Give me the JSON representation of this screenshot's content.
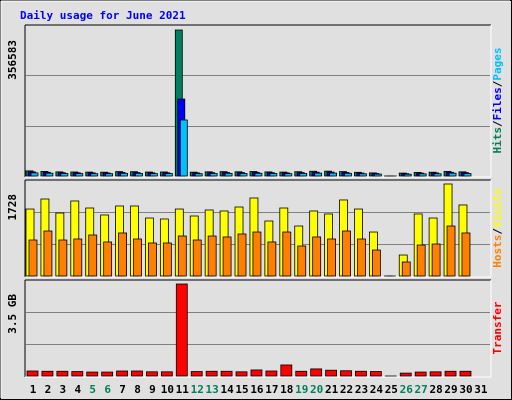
{
  "chart_data": [
    {
      "type": "bar",
      "title": "Daily usage for June 2021",
      "title_color": "#0000ff",
      "legend_separator": "/",
      "series": [
        {
          "name": "Hits",
          "color": "#00805c",
          "values": [
            12500,
            11200,
            10100,
            9800,
            9500,
            9300,
            10800,
            10600,
            9700,
            9900,
            356583,
            9400,
            10200,
            10700,
            10300,
            11000,
            10100,
            9600,
            10500,
            11600,
            11800,
            10900,
            9000,
            7600,
            0,
            7100,
            8800,
            9300,
            11300,
            10200,
            null
          ]
        },
        {
          "name": "Files",
          "color": "#0000ff",
          "values": [
            10100,
            9000,
            8100,
            7900,
            7600,
            7400,
            8700,
            8500,
            7800,
            7900,
            188000,
            7500,
            8200,
            8600,
            8300,
            8800,
            8100,
            7700,
            8400,
            9300,
            9500,
            8700,
            7200,
            6100,
            0,
            5700,
            7000,
            7400,
            9000,
            8200,
            null
          ]
        },
        {
          "name": "Pages",
          "color": "#00c0ff",
          "values": [
            7600,
            6800,
            6100,
            5900,
            5700,
            5600,
            6500,
            6400,
            5800,
            6000,
            136800,
            5600,
            6100,
            6400,
            6200,
            6600,
            6100,
            5800,
            6300,
            7000,
            7100,
            6500,
            5400,
            4600,
            0,
            4300,
            5300,
            5600,
            6800,
            6100,
            null
          ]
        }
      ],
      "ylim": [
        0,
        356583
      ],
      "yticks": [
        356583
      ],
      "grid": true
    },
    {
      "type": "bar",
      "legend_separator": "/",
      "series": [
        {
          "name": "Hosts",
          "color": "#ff8000",
          "values": [
            676,
            845,
            676,
            695,
            770,
            639,
            808,
            695,
            620,
            620,
            751,
            676,
            751,
            733,
            789,
            826,
            639,
            826,
            563,
            733,
            695,
            845,
            695,
            488,
            0,
            263,
            582,
            601,
            939,
            808,
            null
          ]
        },
        {
          "name": "Visits",
          "color": "#ffff00",
          "values": [
            1258,
            1446,
            1183,
            1409,
            1277,
            1146,
            1315,
            1315,
            1089,
            1071,
            1258,
            1127,
            1240,
            1221,
            1296,
            1465,
            1033,
            1277,
            939,
            1221,
            1165,
            1428,
            1258,
            826,
            0,
            394,
            1165,
            1089,
            1728,
            1334,
            null
          ]
        }
      ],
      "ylim": [
        0,
        1728
      ],
      "yticks": [
        1728
      ],
      "grid": true
    },
    {
      "type": "bar",
      "categories": [
        "1",
        "2",
        "3",
        "4",
        "5",
        "6",
        "7",
        "8",
        "9",
        "10",
        "11",
        "12",
        "13",
        "14",
        "15",
        "16",
        "17",
        "18",
        "19",
        "20",
        "21",
        "22",
        "23",
        "24",
        "25",
        "26",
        "27",
        "28",
        "29",
        "30",
        "31"
      ],
      "weekend_indices": [
        4,
        5,
        11,
        12,
        18,
        19,
        25,
        26
      ],
      "weekend_color": "#00805c",
      "series": [
        {
          "name": "Transfer",
          "color": "#ff0000",
          "values": [
            0.19,
            0.18,
            0.18,
            0.17,
            0.15,
            0.15,
            0.19,
            0.19,
            0.16,
            0.16,
            3.5,
            0.17,
            0.18,
            0.18,
            0.16,
            0.23,
            0.19,
            0.42,
            0.18,
            0.27,
            0.22,
            0.2,
            0.18,
            0.17,
            0,
            0.11,
            0.15,
            0.16,
            0.18,
            0.18,
            null
          ]
        }
      ],
      "ylim": [
        0,
        3.5
      ],
      "yticks": [
        {
          "value": 3.5,
          "label": "3.5 GB"
        }
      ],
      "grid": true
    }
  ]
}
